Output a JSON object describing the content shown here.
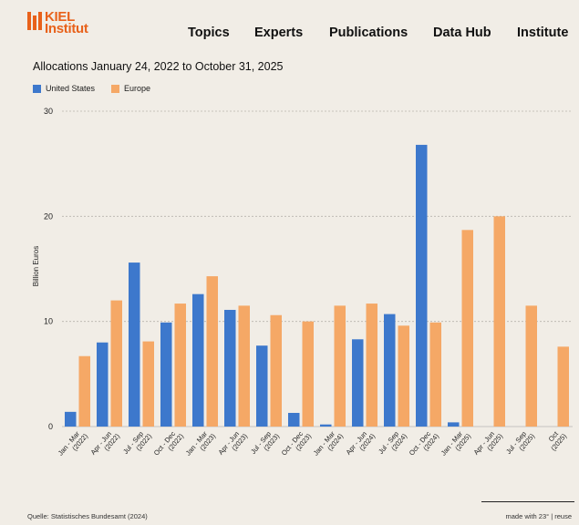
{
  "header": {
    "logo_line1": "KIEL",
    "logo_line2": "Institut",
    "nav": [
      "Topics",
      "Experts",
      "Publications",
      "Data Hub",
      "Institute"
    ]
  },
  "colors": {
    "background": "#f1ede6",
    "brand": "#e8611a",
    "us": "#3d78cc",
    "europe": "#f5a866"
  },
  "chart_data": {
    "type": "bar",
    "title": "Allocations January 24, 2022 to October 31, 2025",
    "ylabel": "Billion Euros",
    "xlabel": "",
    "ylim": [
      0,
      30
    ],
    "yticks": [
      0,
      10,
      20,
      30
    ],
    "grid": true,
    "legend_position": "top-left",
    "categories": [
      "Jan - Mar (2022)",
      "Apr - Jun (2022)",
      "Jul - Sep (2022)",
      "Oct - Dec (2022)",
      "Jan - Mar (2023)",
      "Apr - Jun (2023)",
      "Jul - Sep (2023)",
      "Oct - Dec (2023)",
      "Jan - Mar (2024)",
      "Apr - Jun (2024)",
      "Jul - Sep (2024)",
      "Oct - Dec (2024)",
      "Jan - Mar (2025)",
      "Apr - Jun (2025)",
      "Jul - Sep (2025)",
      "Oct (2025)"
    ],
    "series": [
      {
        "name": "United States",
        "values": [
          1.4,
          8.0,
          15.6,
          9.9,
          12.6,
          11.1,
          7.7,
          1.3,
          0.2,
          8.3,
          10.7,
          26.8,
          0.4,
          0,
          0,
          0
        ]
      },
      {
        "name": "Europe",
        "values": [
          6.7,
          12.0,
          8.1,
          11.7,
          14.3,
          11.5,
          10.6,
          10.0,
          11.5,
          11.7,
          9.6,
          9.9,
          18.7,
          20.0,
          11.5,
          7.6
        ]
      }
    ]
  },
  "footer": {
    "source": "Quelle: Statistisches Bundesamt (2024)",
    "made_with": "made with 23° | reuse"
  }
}
